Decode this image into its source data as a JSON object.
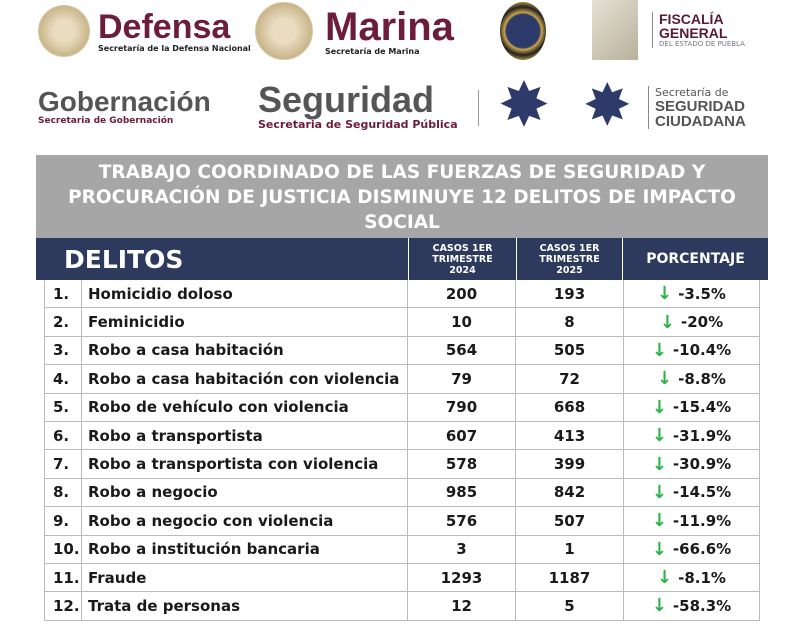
{
  "logos": {
    "defensa": {
      "name": "Defensa",
      "sub": "Secretaría de la Defensa Nacional"
    },
    "marina": {
      "name": "Marina",
      "sub": "Secretaría de Marina"
    },
    "guardia": {
      "name": "Guardia Nacional"
    },
    "fiscalia": {
      "line1": "FISCALÍA",
      "line2": "GENERAL",
      "line3": "DEL ESTADO DE PUEBLA"
    },
    "gobernacion": {
      "name": "Gobernación",
      "sub": "Secretaria de Gobernación"
    },
    "seguridad": {
      "name": "Seguridad",
      "sub": "Secretaria de Seguridad Pública"
    },
    "ssc": {
      "line1": "Secretaría de",
      "line2": "SEGURIDAD",
      "line3": "CIUDADANA"
    }
  },
  "title": "TRABAJO COORDINADO DE LAS FUERZAS DE SEGURIDAD Y PROCURACIÓN DE JUSTICIA DISMINUYE 12 DELITOS DE IMPACTO SOCIAL",
  "headers": {
    "delitos": "DELITOS",
    "c2024": "CASOS 1ER TRIMESTRE 2024",
    "c2025": "CASOS 1ER TRIMESTRE 2025",
    "pct": "PORCENTAJE"
  },
  "colors": {
    "header": "#2d3a5e",
    "banner": "#a6a6a6",
    "arrow": "#2fb24c",
    "brand": "#6b1d3a"
  },
  "rows": [
    {
      "n": "1.",
      "delito": "Homicidio doloso",
      "c2024": "200",
      "c2025": "193",
      "pct": "-3.5%"
    },
    {
      "n": "2.",
      "delito": "Feminicidio",
      "c2024": "10",
      "c2025": "8",
      "pct": "-20%"
    },
    {
      "n": "3.",
      "delito": "Robo a casa habitación",
      "c2024": "564",
      "c2025": "505",
      "pct": "-10.4%"
    },
    {
      "n": "4.",
      "delito": "Robo a casa habitación con violencia",
      "c2024": "79",
      "c2025": "72",
      "pct": "-8.8%"
    },
    {
      "n": "5.",
      "delito": "Robo de vehículo con violencia",
      "c2024": "790",
      "c2025": "668",
      "pct": "-15.4%"
    },
    {
      "n": "6.",
      "delito": "Robo a transportista",
      "c2024": "607",
      "c2025": "413",
      "pct": "-31.9%"
    },
    {
      "n": "7.",
      "delito": "Robo a transportista con violencia",
      "c2024": "578",
      "c2025": "399",
      "pct": "-30.9%"
    },
    {
      "n": "8.",
      "delito": "Robo a negocio",
      "c2024": "985",
      "c2025": "842",
      "pct": "-14.5%"
    },
    {
      "n": "9.",
      "delito": "Robo a negocio con violencia",
      "c2024": "576",
      "c2025": "507",
      "pct": "-11.9%"
    },
    {
      "n": "10.",
      "delito": "Robo a institución bancaria",
      "c2024": "3",
      "c2025": "1",
      "pct": "-66.6%"
    },
    {
      "n": "11.",
      "delito": "Fraude",
      "c2024": "1293",
      "c2025": "1187",
      "pct": "-8.1%"
    },
    {
      "n": "12.",
      "delito": "Trata de personas",
      "c2024": "12",
      "c2025": "5",
      "pct": "-58.3%"
    }
  ]
}
